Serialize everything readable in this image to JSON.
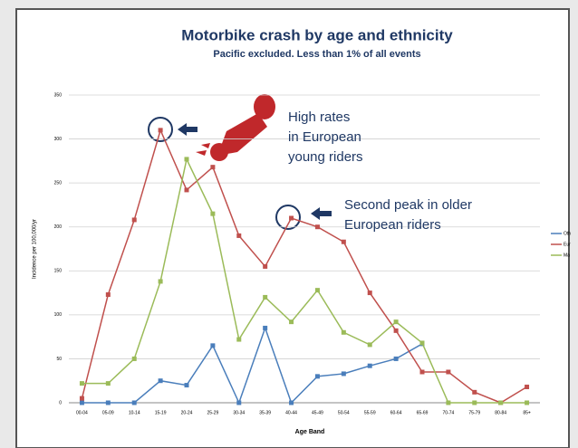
{
  "chart_data": {
    "type": "line",
    "title": "Motorbike crash by age and ethnicity",
    "subtitle": "Pacific excluded.  Less than 1% of all events",
    "x_label": "Age Band",
    "y_label": "Incidence per 100,000/yr",
    "categories": [
      "00-04",
      "05-09",
      "10-14",
      "15-19",
      "20-24",
      "25-29",
      "30-34",
      "35-39",
      "40-44",
      "45-49",
      "50-54",
      "55-59",
      "60-64",
      "65-69",
      "70-74",
      "75-79",
      "80-84",
      "85+"
    ],
    "series": [
      {
        "name": "Oth",
        "color": "#4a7ebb",
        "values": [
          0,
          0,
          0,
          25,
          20,
          65,
          0,
          85,
          0,
          30,
          33,
          42,
          50,
          67,
          null,
          null,
          null,
          null
        ]
      },
      {
        "name": "Eur",
        "color": "#c0504d",
        "values": [
          5,
          123,
          208,
          310,
          242,
          268,
          190,
          155,
          210,
          200,
          183,
          125,
          82,
          35,
          35,
          12,
          0,
          18
        ]
      },
      {
        "name": "Ma",
        "color": "#9bbb59",
        "values": [
          22,
          22,
          50,
          138,
          277,
          215,
          72,
          120,
          92,
          128,
          80,
          66,
          92,
          68,
          0,
          0,
          0,
          0
        ]
      }
    ],
    "ylim": [
      0,
      350
    ],
    "yticks": [
      0,
      50,
      100,
      150,
      200,
      250,
      300,
      350
    ],
    "grid": true,
    "annotations": [
      {
        "lines": [
          "High rates",
          "in European",
          "young riders"
        ]
      },
      {
        "lines": [
          "Second peak in older",
          "European riders"
        ]
      }
    ]
  }
}
